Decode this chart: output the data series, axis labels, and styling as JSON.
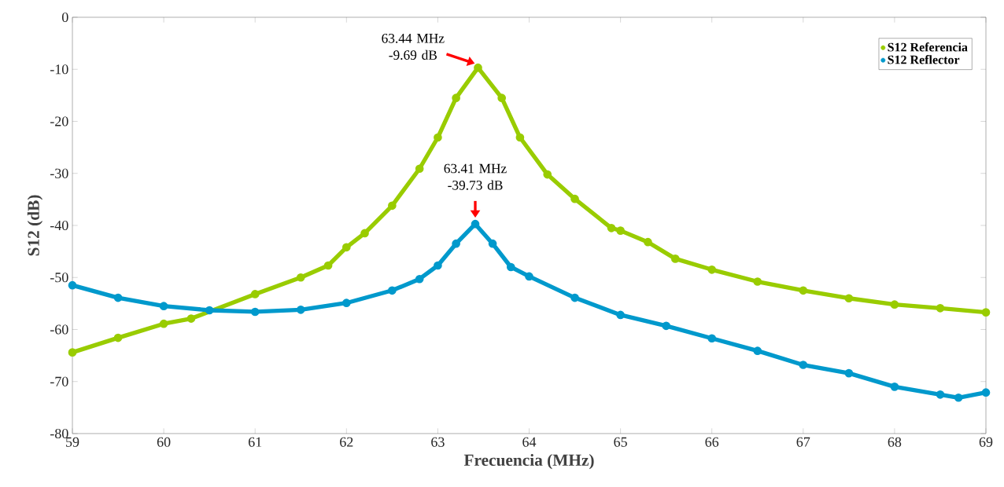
{
  "chart_data": {
    "type": "line",
    "xlabel": "Frecuencia (MHz)",
    "ylabel": "S12 (dB)",
    "xlim": [
      59,
      69
    ],
    "xticks": [
      59,
      60,
      61,
      62,
      63,
      64,
      65,
      66,
      67,
      68,
      69
    ],
    "ylim": [
      -80,
      0
    ],
    "yticks": [
      -80,
      -70,
      -60,
      -50,
      -40,
      -30,
      -20,
      -10,
      0
    ],
    "grid": false,
    "legend": "top right",
    "marker": "circle",
    "line_style": "solid",
    "series": [
      {
        "name": "S12 Referencia",
        "color": "#99cc00",
        "x": [
          59,
          59.5,
          60,
          60.3,
          61,
          61.5,
          61.8,
          62,
          62.2,
          62.5,
          62.8,
          63,
          63.2,
          63.44,
          63.7,
          63.9,
          64.2,
          64.5,
          64.9,
          65,
          65.3,
          65.6,
          66,
          66.5,
          67,
          67.5,
          68,
          68.5,
          69
        ],
        "values": [
          -64.4,
          -61.6,
          -58.9,
          -57.9,
          -53.2,
          -50,
          -47.7,
          -44.2,
          -41.5,
          -36.2,
          -29.1,
          -23.1,
          -15.5,
          -9.69,
          -15.5,
          -23.1,
          -30.2,
          -34.9,
          -40.5,
          -41.0,
          -43.2,
          -46.4,
          -48.5,
          -50.8,
          -52.5,
          -54.0,
          -55.2,
          -55.9,
          -56.7
        ]
      },
      {
        "name": "S12 Reflector",
        "color": "#0099cc",
        "x": [
          59,
          59.5,
          60,
          60.5,
          61,
          61.5,
          62,
          62.5,
          62.8,
          63,
          63.2,
          63.41,
          63.6,
          63.8,
          64,
          64.5,
          65,
          65.5,
          66,
          66.5,
          67,
          67.5,
          68,
          68.5,
          68.7,
          69
        ],
        "values": [
          -51.5,
          -53.9,
          -55.5,
          -56.3,
          -56.6,
          -56.2,
          -54.9,
          -52.5,
          -50.3,
          -47.7,
          -43.5,
          -39.73,
          -43.5,
          -48.0,
          -49.8,
          -53.9,
          -57.2,
          -59.3,
          -61.7,
          -64.1,
          -66.8,
          -68.4,
          -71.0,
          -72.5,
          -73.1,
          -72.1
        ]
      }
    ],
    "annotations": [
      {
        "text": "63.44 MHz -9.69 dB",
        "x": 63.44,
        "y": -9.69
      },
      {
        "text": "63.41 MHz -39.73 dB",
        "x": 63.41,
        "y": -39.73
      }
    ]
  }
}
